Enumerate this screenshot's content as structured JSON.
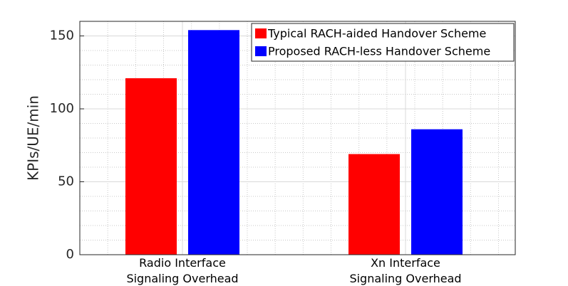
{
  "chart_data": {
    "type": "bar",
    "ylabel": "KPIs/UE/min",
    "categories": [
      "Radio Interface\nSignaling Overhead",
      "Xn Interface\nSignaling Overhead"
    ],
    "series": [
      {
        "name": "Typical RACH-aided Handover Scheme",
        "color": "#ff0000",
        "values": [
          121,
          69
        ]
      },
      {
        "name": "Proposed RACH-less Handover Scheme",
        "color": "#0000ff",
        "values": [
          154,
          86
        ]
      }
    ],
    "ylim": [
      0,
      160
    ],
    "yticks": [
      0,
      50,
      100,
      150
    ],
    "grid": true,
    "legend": "upper-right"
  }
}
